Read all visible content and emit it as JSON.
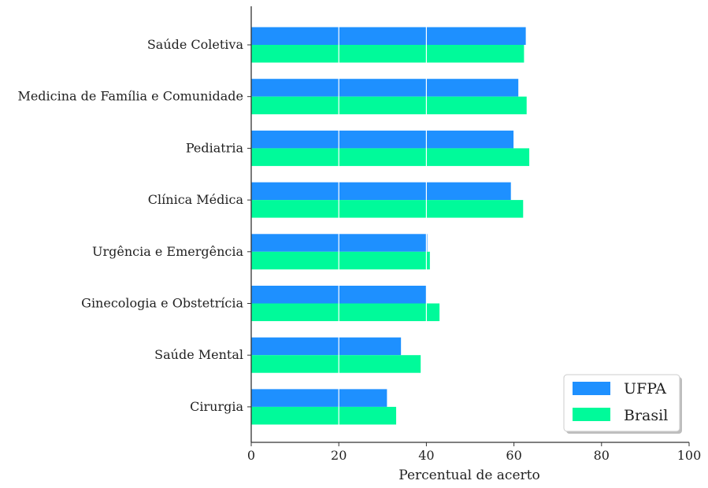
{
  "chart_data": {
    "type": "bar",
    "orientation": "horizontal",
    "title": "",
    "xlabel": "Percentual de acerto",
    "ylabel": "",
    "xlim": [
      0,
      100
    ],
    "xticks": [
      0,
      20,
      40,
      60,
      80,
      100
    ],
    "grid": "vertical lines at ticks 20, 40",
    "legend_position": "bottom-right",
    "categories": [
      "Saúde Coletiva",
      "Medicina de Família e Comunidade",
      "Pediatria",
      "Clínica Médica",
      "Urgência e Emergência",
      "Ginecologia e Obstetrícia",
      "Saúde Mental",
      "Cirurgia"
    ],
    "series": [
      {
        "name": "UFPA",
        "color": "#1e90ff",
        "values": [
          62.7,
          61.0,
          59.9,
          59.3,
          40.2,
          40.1,
          34.2,
          31.0
        ]
      },
      {
        "name": "Brasil",
        "color": "#00fa9a",
        "values": [
          62.3,
          62.9,
          63.5,
          62.1,
          40.8,
          43.0,
          38.7,
          33.1
        ]
      }
    ]
  }
}
